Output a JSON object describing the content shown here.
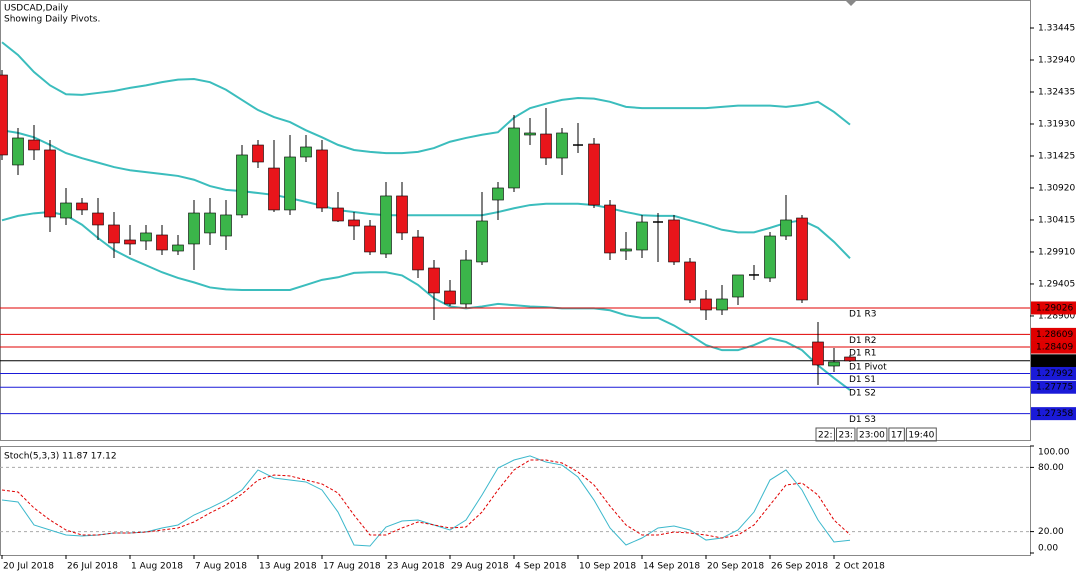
{
  "chart_data": [
    {
      "type": "candlestick",
      "title": "USDCAD,Daily",
      "subtitle": "Showing Daily Pivots.",
      "categories": [
        "20 Jul 2018",
        null,
        null,
        null,
        "26 Jul 2018",
        null,
        null,
        null,
        "1 Aug 2018",
        null,
        null,
        null,
        "7 Aug 2018",
        null,
        null,
        null,
        "13 Aug 2018",
        null,
        null,
        null,
        "17 Aug 2018",
        null,
        null,
        null,
        "23 Aug 2018",
        null,
        null,
        null,
        "29 Aug 2018",
        null,
        null,
        null,
        "4 Sep 2018",
        null,
        null,
        null,
        "10 Sep 2018",
        null,
        null,
        null,
        "14 Sep 2018",
        null,
        null,
        null,
        "20 Sep 2018",
        null,
        null,
        null,
        "26 Sep 2018",
        null,
        null,
        null,
        "2 Oct 2018",
        null
      ],
      "open": [
        1.32703,
        1.31283,
        1.31677,
        1.3152,
        1.30446,
        1.30683,
        1.30525,
        1.30336,
        1.30099,
        1.30083,
        1.30178,
        1.29925,
        1.30036,
        1.3021,
        1.30162,
        1.30494,
        1.31598,
        1.31235,
        1.30573,
        1.31409,
        1.3152,
        1.30604,
        1.30415,
        1.3032,
        1.29878,
        1.30794,
        1.30146,
        1.29657,
        1.29294,
        1.29089,
        1.29752,
        1.3073,
        1.3092,
        1.31756,
        1.31772,
        1.31393,
        1.31598,
        1.31614,
        1.30651,
        1.29925,
        1.29941,
        1.30383,
        1.30415,
        1.29752,
        1.29168,
        1.28994,
        1.29199,
        1.29547,
        1.29499,
        1.30162,
        1.30446,
        1.28489,
        1.2811,
        1.28252
      ],
      "high": [
        1.32782,
        1.31867,
        1.31914,
        1.31677,
        1.3092,
        1.30762,
        1.30762,
        1.30541,
        1.30336,
        1.30336,
        1.30336,
        1.30178,
        1.3073,
        1.30762,
        1.3073,
        1.31598,
        1.31677,
        1.31677,
        1.31756,
        1.31756,
        1.31677,
        1.30857,
        1.30541,
        1.30415,
        1.31015,
        1.31015,
        1.30257,
        1.29783,
        1.29468,
        1.29941,
        1.30857,
        1.31015,
        1.32072,
        1.32025,
        1.32182,
        1.31867,
        1.31946,
        1.31709,
        1.3073,
        1.30225,
        1.30494,
        1.30525,
        1.30494,
        1.29815,
        1.2931,
        1.29389,
        1.29499,
        1.29705,
        1.30225,
        1.30809,
        1.30494,
        1.28805,
        1.28395,
        1.28284
      ],
      "low": [
        1.31362,
        1.31125,
        1.31362,
        1.30225,
        1.30336,
        1.30494,
        1.30099,
        1.29815,
        1.29862,
        1.29941,
        1.29862,
        1.29862,
        1.29626,
        1.3002,
        1.29941,
        1.30446,
        1.31235,
        1.30541,
        1.30494,
        1.3133,
        1.30541,
        1.30383,
        1.30099,
        1.29862,
        1.29815,
        1.30099,
        1.29499,
        1.28836,
        1.29057,
        1.29026,
        1.29705,
        1.30415,
        1.30857,
        1.31598,
        1.31283,
        1.31125,
        1.31472,
        1.30604,
        1.29783,
        1.29783,
        1.29815,
        1.29752,
        1.29705,
        1.29105,
        1.28836,
        1.28915,
        1.29073,
        1.29468,
        1.29436,
        1.30099,
        1.29105,
        1.2781,
        1.28016,
        1.28174
      ],
      "close": [
        1.31441,
        1.31709,
        1.3152,
        1.30462,
        1.30683,
        1.30573,
        1.30336,
        1.30052,
        1.30036,
        1.3021,
        1.29941,
        1.3002,
        1.30525,
        1.30525,
        1.30494,
        1.31441,
        1.3133,
        1.30573,
        1.31409,
        1.31567,
        1.30604,
        1.30399,
        1.3032,
        1.2991,
        1.30794,
        1.3021,
        1.29626,
        1.29263,
        1.29089,
        1.29783,
        1.30399,
        1.3092,
        1.31867,
        1.31788,
        1.31393,
        1.31788,
        1.31598,
        1.30651,
        1.29894,
        1.29957,
        1.30383,
        1.30383,
        1.29752,
        1.29152,
        1.28994,
        1.29168,
        1.29547,
        1.29547,
        1.30162,
        1.30415,
        1.29152,
        1.28126,
        1.28174,
        1.28192
      ],
      "up_color": "#3bb54a",
      "down_color": "#e8151b",
      "flat_color": "#000000",
      "bands": {
        "color": "#3bbdbd",
        "upper": [
          1.3322,
          1.3302,
          1.3275,
          1.3254,
          1.324,
          1.3239,
          1.3242,
          1.3245,
          1.325,
          1.3254,
          1.3259,
          1.3263,
          1.3264,
          1.3259,
          1.3247,
          1.3231,
          1.3215,
          1.3204,
          1.3196,
          1.3183,
          1.3172,
          1.316,
          1.3152,
          1.3149,
          1.3147,
          1.3147,
          1.3149,
          1.3155,
          1.3165,
          1.3171,
          1.3176,
          1.318,
          1.3203,
          1.3218,
          1.3225,
          1.3231,
          1.3234,
          1.3233,
          1.3228,
          1.322,
          1.3218,
          1.3218,
          1.3218,
          1.3218,
          1.3218,
          1.322,
          1.3222,
          1.3222,
          1.3222,
          1.322,
          1.3223,
          1.3228,
          1.3212,
          1.3192
        ],
        "middle": [
          1.3183,
          1.3179,
          1.3172,
          1.316,
          1.3147,
          1.3139,
          1.3132,
          1.3125,
          1.312,
          1.3117,
          1.3114,
          1.3111,
          1.3105,
          1.3095,
          1.3089,
          1.3087,
          1.3084,
          1.3081,
          1.3076,
          1.307,
          1.3064,
          1.3057,
          1.3054,
          1.3051,
          1.3049,
          1.3049,
          1.3049,
          1.3049,
          1.3049,
          1.3049,
          1.3049,
          1.3054,
          1.306,
          1.3065,
          1.3067,
          1.3067,
          1.3067,
          1.3065,
          1.306,
          1.3054,
          1.3049,
          1.3048,
          1.3048,
          1.3041,
          1.3034,
          1.3026,
          1.3022,
          1.3022,
          1.3029,
          1.3037,
          1.3041,
          1.3029,
          1.3007,
          1.2981
        ],
        "lower": [
          1.3041,
          1.3048,
          1.3052,
          1.3054,
          1.3049,
          1.3034,
          1.3013,
          1.2994,
          1.2981,
          1.297,
          1.2959,
          1.295,
          1.2943,
          1.2935,
          1.2932,
          1.2931,
          1.2931,
          1.2931,
          1.2931,
          1.2939,
          1.2947,
          1.2951,
          1.2958,
          1.2959,
          1.2959,
          1.2954,
          1.2939,
          1.2918,
          1.2905,
          1.2902,
          1.2905,
          1.2909,
          1.2907,
          1.2905,
          1.2904,
          1.2902,
          1.2902,
          1.2902,
          1.2899,
          1.2891,
          1.2887,
          1.2887,
          1.2875,
          1.286,
          1.2844,
          1.2836,
          1.2836,
          1.2844,
          1.2855,
          1.2849,
          1.2836,
          1.2812,
          1.2792,
          1.2773
        ]
      },
      "levels": [
        {
          "name": "D1 R3",
          "value": 1.29026,
          "color": "#e00000"
        },
        {
          "name": "D1 R2",
          "value": 1.28609,
          "color": "#e00000"
        },
        {
          "name": "D1 R1",
          "value": 1.28409,
          "color": "#e00000"
        },
        {
          "name": "D1 Pivot",
          "value": 1.28192,
          "color": "#000000"
        },
        {
          "name": "D1 S1",
          "value": 1.27992,
          "color": "#1a1ad8"
        },
        {
          "name": "D1 S2",
          "value": 1.27775,
          "color": "#1a1ad8"
        },
        {
          "name": "D1 S3",
          "value": 1.27358,
          "color": "#1a1ad8"
        }
      ],
      "time_labels": [
        "22:",
        "23:",
        "23:00",
        "17",
        "19:40"
      ],
      "ylim": [
        1.26942,
        1.33887
      ],
      "yticks": [
        1.33445,
        {
          "value": 1.3294,
          "label": "1.32940"
        },
        1.32435,
        {
          "value": 1.3193,
          "label": "1.31930"
        },
        1.31425,
        {
          "value": 1.3092,
          "label": "1.30920"
        },
        1.30415,
        {
          "value": 1.2991,
          "label": "1.29910"
        },
        1.29405,
        {
          "value": 1.289,
          "label": "1.28900"
        }
      ]
    },
    {
      "type": "line",
      "title": "Stoch(5,3,3) 11.87 17.12",
      "series": [
        {
          "color": "#3cb8cc",
          "dash": false,
          "values": [
            49.5,
            47.7,
            26.2,
            21.5,
            16.8,
            15.9,
            16.8,
            18.7,
            18.7,
            19.6,
            23.4,
            26.2,
            35.5,
            42.1,
            49.5,
            58.9,
            77.6,
            70.1,
            68.2,
            66.4,
            58.9,
            38.3,
            7.5,
            6.5,
            24.3,
            29.9,
            30.8,
            26.2,
            21.5,
            30.8,
            54.2,
            79.4,
            86.9,
            90.7,
            85.0,
            82.2,
            71.0,
            49.5,
            23.4,
            7.5,
            14.0,
            23.4,
            25.2,
            21.5,
            12.1,
            14.0,
            21.5,
            38.3,
            68.2,
            77.6,
            58.9,
            30.8,
            10.3,
            11.87
          ]
        },
        {
          "color": "#e00000",
          "dash": true,
          "values": [
            58.9,
            57.0,
            42.1,
            30.8,
            21.5,
            16.8,
            16.8,
            18.7,
            18.7,
            19.6,
            21.5,
            23.4,
            29.0,
            37.4,
            44.9,
            55.1,
            68.2,
            72.9,
            72.0,
            68.2,
            64.5,
            56.1,
            35.5,
            16.8,
            16.8,
            23.4,
            29.0,
            26.2,
            23.4,
            24.3,
            38.3,
            58.9,
            77.6,
            86.9,
            86.9,
            84.1,
            75.7,
            63.6,
            43.9,
            26.2,
            16.8,
            16.8,
            19.6,
            18.7,
            16.8,
            14.0,
            16.8,
            26.2,
            44.9,
            63.6,
            65.4,
            54.2,
            30.8,
            17.12
          ]
        }
      ],
      "levels": [
        80,
        20
      ],
      "ylim": [
        0,
        100
      ],
      "yticks": [
        {
          "value": 100,
          "label": "100.00"
        },
        {
          "value": 80,
          "label": "80.00"
        },
        {
          "value": 20,
          "label": "20.00"
        },
        {
          "value": 0,
          "label": "0.00"
        }
      ]
    }
  ]
}
